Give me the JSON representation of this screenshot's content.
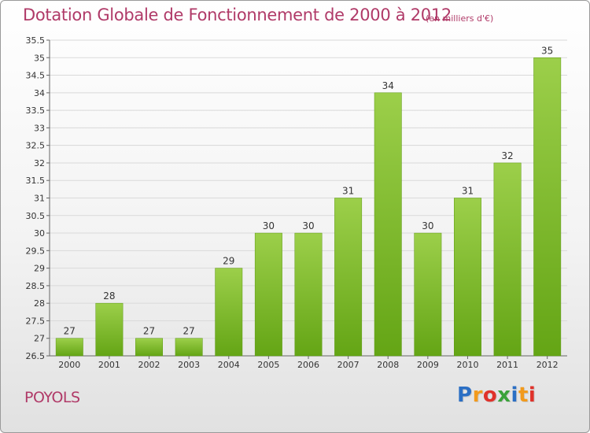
{
  "header": {
    "title": "Dotation Globale de Fonctionnement de 2000 à 2012",
    "subtitle": "(en milliers d'€)"
  },
  "footer": {
    "place": "POYOLS",
    "brand": "Proxiti",
    "brand_colors": [
      "#2b6fc4",
      "#f29a1c",
      "#e0322a",
      "#3aa23a",
      "#2b6fc4",
      "#f29a1c",
      "#e0322a"
    ]
  },
  "chart_data": {
    "type": "bar",
    "title": "Dotation Globale de Fonctionnement de 2000 à 2012",
    "subtitle": "(en milliers d'€)",
    "categories": [
      "2000",
      "2001",
      "2002",
      "2003",
      "2004",
      "2005",
      "2006",
      "2007",
      "2008",
      "2009",
      "2010",
      "2011",
      "2012"
    ],
    "values": [
      27,
      28,
      27,
      27,
      29,
      30,
      30,
      31,
      34,
      30,
      31,
      32,
      35
    ],
    "ylim": [
      26.5,
      35.5
    ],
    "ytick_step": 0.5,
    "yticks": [
      "26.5",
      "27",
      "27.5",
      "28",
      "28.5",
      "29",
      "29.5",
      "30",
      "30.5",
      "31",
      "31.5",
      "32",
      "32.5",
      "33",
      "33.5",
      "34",
      "34.5",
      "35",
      "35.5"
    ],
    "grid": true,
    "bar_color_top": "#9ccf4a",
    "bar_color_bottom": "#64a515",
    "grid_color": "#d9d9d9"
  }
}
